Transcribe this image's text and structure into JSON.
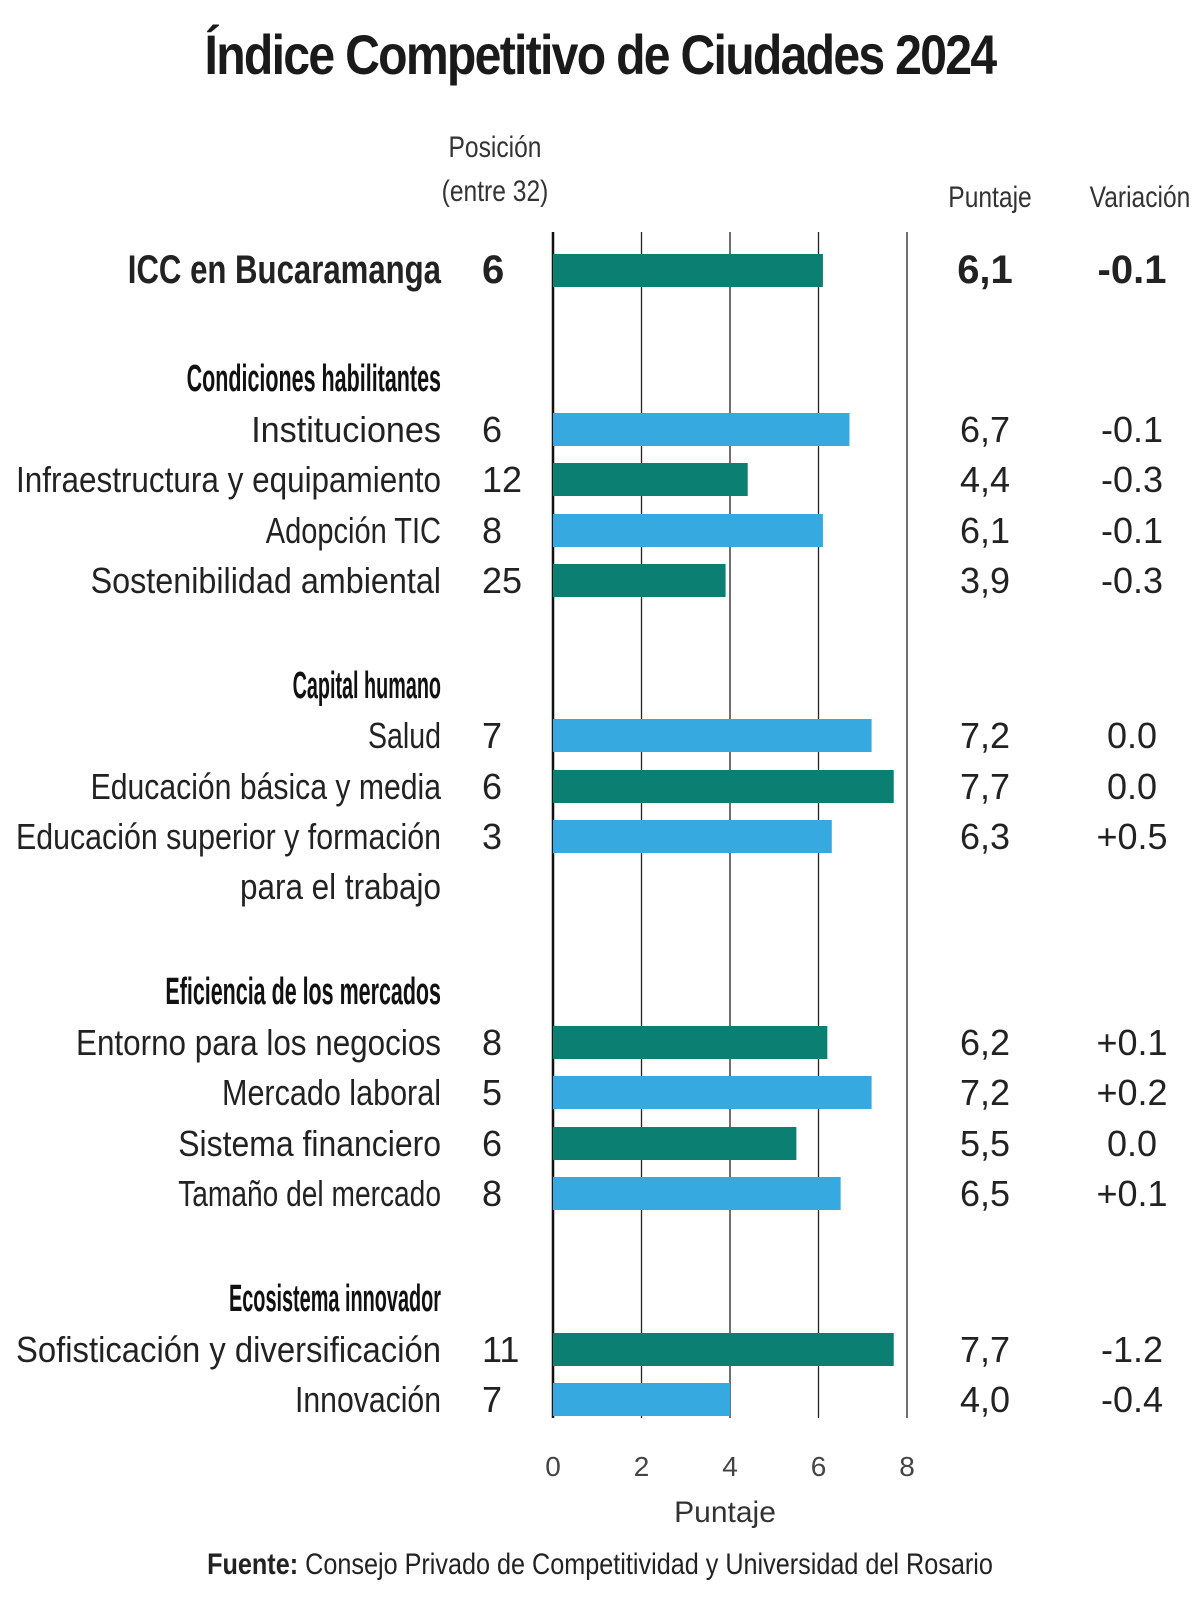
{
  "chart_data": {
    "type": "bar",
    "title": "Índice Competitivo de Ciudades 2024",
    "column_headers": {
      "position": "Posición (entre 32)",
      "score": "Puntaje",
      "variation": "Variación"
    },
    "xlabel": "Puntaje",
    "xlim": [
      0,
      8
    ],
    "xticks": [
      "0",
      "2",
      "4",
      "6",
      "8"
    ],
    "grid": true,
    "colors": {
      "teal": "#0a7f72",
      "blue": "#36a9e1"
    },
    "rows": [
      {
        "kind": "total",
        "label": "ICC en Bucaramanga",
        "position": "6",
        "score": 6.1,
        "score_label": "6,1",
        "variation": "-0.1",
        "color": "teal"
      },
      {
        "kind": "group",
        "label": "Condiciones habilitantes"
      },
      {
        "kind": "item",
        "label": "Instituciones",
        "position": "6",
        "score": 6.7,
        "score_label": "6,7",
        "variation": "-0.1",
        "color": "blue"
      },
      {
        "kind": "item",
        "label": "Infraestructura y equipamiento",
        "position": "12",
        "score": 4.4,
        "score_label": "4,4",
        "variation": "-0.3",
        "color": "teal"
      },
      {
        "kind": "item",
        "label": "Adopción TIC",
        "position": "8",
        "score": 6.1,
        "score_label": "6,1",
        "variation": "-0.1",
        "color": "blue"
      },
      {
        "kind": "item",
        "label": "Sostenibilidad ambiental",
        "position": "25",
        "score": 3.9,
        "score_label": "3,9",
        "variation": "-0.3",
        "color": "teal"
      },
      {
        "kind": "group",
        "label": "Capital humano"
      },
      {
        "kind": "item",
        "label": "Salud",
        "position": "7",
        "score": 7.2,
        "score_label": "7,2",
        "variation": "0.0",
        "color": "blue"
      },
      {
        "kind": "item",
        "label": "Educación básica y media",
        "position": "6",
        "score": 7.7,
        "score_label": "7,7",
        "variation": "0.0",
        "color": "teal"
      },
      {
        "kind": "item",
        "label": "Educación superior y formación",
        "label_line2": "para el trabajo",
        "position": "3",
        "score": 6.3,
        "score_label": "6,3",
        "variation": "+0.5",
        "color": "blue"
      },
      {
        "kind": "group",
        "label": "Eficiencia de los mercados"
      },
      {
        "kind": "item",
        "label": "Entorno para los negocios",
        "position": "8",
        "score": 6.2,
        "score_label": "6,2",
        "variation": "+0.1",
        "color": "teal"
      },
      {
        "kind": "item",
        "label": "Mercado laboral",
        "position": "5",
        "score": 7.2,
        "score_label": "7,2",
        "variation": "+0.2",
        "color": "blue"
      },
      {
        "kind": "item",
        "label": "Sistema financiero",
        "position": "6",
        "score": 5.5,
        "score_label": "5,5",
        "variation": "0.0",
        "color": "teal"
      },
      {
        "kind": "item",
        "label": "Tamaño del mercado",
        "position": "8",
        "score": 6.5,
        "score_label": "6,5",
        "variation": "+0.1",
        "color": "blue"
      },
      {
        "kind": "group",
        "label": "Ecosistema innovador"
      },
      {
        "kind": "item",
        "label": "Sofisticación y diversificación",
        "position": "11",
        "score": 7.7,
        "score_label": "7,7",
        "variation": "-1.2",
        "color": "teal"
      },
      {
        "kind": "item",
        "label": "Innovación",
        "position": "7",
        "score": 4.0,
        "score_label": "4,0",
        "variation": "-0.4",
        "color": "blue"
      }
    ]
  },
  "source": {
    "prefix": "Fuente:",
    "text": "Consejo Privado de Competitividad y Universidad del Rosario"
  }
}
